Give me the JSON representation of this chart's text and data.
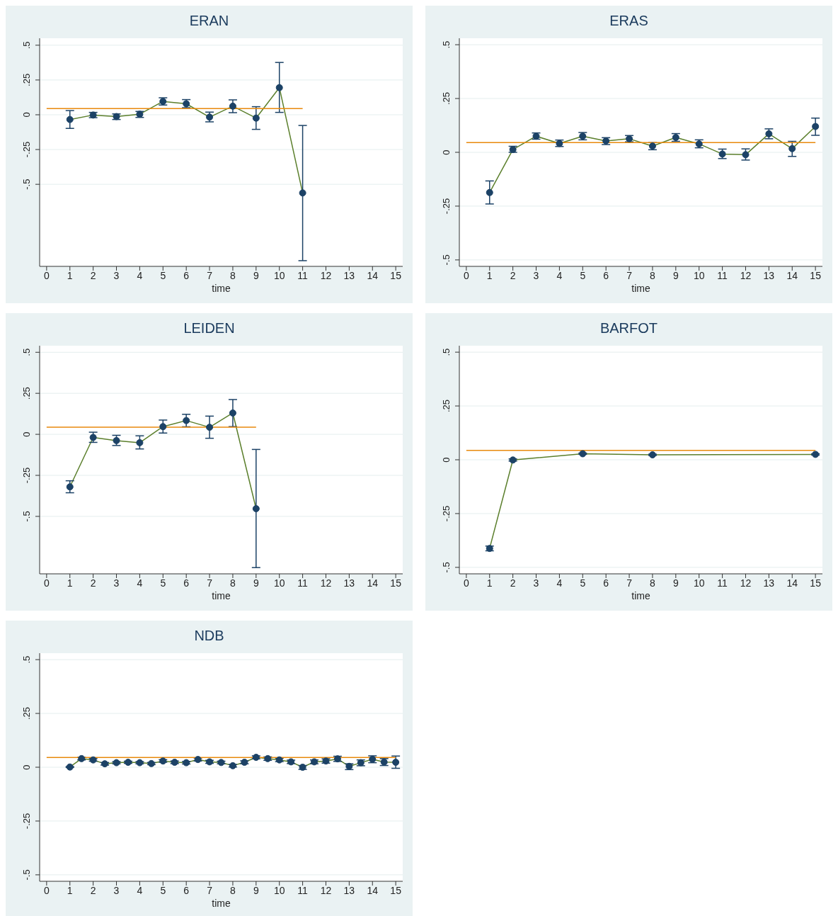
{
  "chart_data": [
    {
      "type": "line",
      "title": "ERAN",
      "xlabel": "time",
      "xlim": [
        -0.3,
        15.3
      ],
      "xticks": [
        0,
        1,
        2,
        3,
        4,
        5,
        6,
        7,
        8,
        9,
        10,
        11,
        12,
        13,
        14,
        15
      ],
      "ylim": [
        -1.09,
        0.55
      ],
      "yticks": [
        {
          "value": -0.5,
          "label": "-.5"
        },
        {
          "value": -0.25,
          "label": "-.25"
        },
        {
          "value": 0,
          "label": "0"
        },
        {
          "value": 0.25,
          "label": ".25"
        },
        {
          "value": 0.5,
          "label": ".5"
        }
      ],
      "grid": "y",
      "series": [
        {
          "type": "line",
          "color": "#5b7f2c",
          "marker": "none",
          "x": [
            1,
            2,
            3,
            4,
            5,
            6,
            7,
            8,
            9,
            10,
            11
          ],
          "values": [
            -0.034,
            -0.002,
            -0.013,
            0.004,
            0.096,
            0.079,
            -0.017,
            0.062,
            -0.024,
            0.195,
            -0.562
          ]
        },
        {
          "type": "scatter",
          "color": "#1c4266",
          "marker": "circle",
          "x": [
            1,
            2,
            3,
            4,
            5,
            6,
            7,
            8,
            9,
            10,
            11
          ],
          "values": [
            -0.034,
            -0.002,
            -0.013,
            0.004,
            0.096,
            0.079,
            -0.017,
            0.062,
            -0.024,
            0.195,
            -0.562
          ],
          "errors": [
            [
              -0.098,
              0.03
            ],
            [
              -0.021,
              0.017
            ],
            [
              -0.034,
              0.006
            ],
            [
              -0.019,
              0.024
            ],
            [
              0.07,
              0.122
            ],
            [
              0.051,
              0.109
            ],
            [
              -0.051,
              0.019
            ],
            [
              0.015,
              0.107
            ],
            [
              -0.105,
              0.058
            ],
            [
              0.017,
              0.376
            ],
            [
              -1.049,
              -0.077
            ]
          ]
        },
        {
          "type": "line",
          "color": "#e8890c",
          "marker": "none",
          "x": [
            0,
            11
          ],
          "values": [
            0.045,
            0.045
          ]
        }
      ]
    },
    {
      "type": "line",
      "title": "ERAS",
      "xlabel": "time",
      "xlim": [
        -0.3,
        15.3
      ],
      "xticks": [
        0,
        1,
        2,
        3,
        4,
        5,
        6,
        7,
        8,
        9,
        10,
        11,
        12,
        13,
        14,
        15
      ],
      "ylim": [
        -0.53,
        0.53
      ],
      "yticks": [
        {
          "value": -0.5,
          "label": "-.5"
        },
        {
          "value": -0.25,
          "label": "-.25"
        },
        {
          "value": 0,
          "label": "0"
        },
        {
          "value": 0.25,
          "label": ".25"
        },
        {
          "value": 0.5,
          "label": ".5"
        }
      ],
      "grid": "y",
      "series": [
        {
          "type": "line",
          "color": "#5b7f2c",
          "marker": "none",
          "x": [
            1,
            2,
            3,
            4,
            5,
            6,
            7,
            8,
            9,
            10,
            11,
            12,
            13,
            14,
            15
          ],
          "values": [
            -0.187,
            0.013,
            0.075,
            0.041,
            0.075,
            0.053,
            0.063,
            0.029,
            0.069,
            0.039,
            -0.008,
            -0.011,
            0.086,
            0.017,
            0.12
          ]
        },
        {
          "type": "scatter",
          "color": "#1c4266",
          "marker": "circle",
          "x": [
            1,
            2,
            3,
            4,
            5,
            6,
            7,
            8,
            9,
            10,
            11,
            12,
            13,
            14,
            15
          ],
          "values": [
            -0.187,
            0.013,
            0.075,
            0.041,
            0.075,
            0.053,
            0.063,
            0.029,
            0.069,
            0.039,
            -0.008,
            -0.011,
            0.086,
            0.017,
            0.12
          ],
          "errors": [
            [
              -0.24,
              -0.133
            ],
            [
              0,
              0.028
            ],
            [
              0.061,
              0.09
            ],
            [
              0.027,
              0.057
            ],
            [
              0.058,
              0.092
            ],
            [
              0.036,
              0.068
            ],
            [
              0.049,
              0.078
            ],
            [
              0.012,
              0.045
            ],
            [
              0.051,
              0.087
            ],
            [
              0.021,
              0.058
            ],
            [
              -0.029,
              0.015
            ],
            [
              -0.036,
              0.016
            ],
            [
              0.063,
              0.109
            ],
            [
              -0.019,
              0.051
            ],
            [
              0.079,
              0.159
            ]
          ]
        },
        {
          "type": "line",
          "color": "#e8890c",
          "marker": "none",
          "x": [
            0,
            15
          ],
          "values": [
            0.045,
            0.045
          ]
        }
      ]
    },
    {
      "type": "line",
      "title": "LEIDEN",
      "xlabel": "time",
      "xlim": [
        -0.3,
        15.3
      ],
      "xticks": [
        0,
        1,
        2,
        3,
        4,
        5,
        6,
        7,
        8,
        9,
        10,
        11,
        12,
        13,
        14,
        15
      ],
      "ylim": [
        -0.85,
        0.54
      ],
      "yticks": [
        {
          "value": -0.5,
          "label": "-.5"
        },
        {
          "value": -0.25,
          "label": "-.25"
        },
        {
          "value": 0,
          "label": "0"
        },
        {
          "value": 0.25,
          "label": ".25"
        },
        {
          "value": 0.5,
          "label": ".5"
        }
      ],
      "grid": "y",
      "series": [
        {
          "type": "line",
          "color": "#5b7f2c",
          "marker": "none",
          "x": [
            1,
            2,
            3,
            4,
            5,
            6,
            7,
            8,
            9
          ],
          "values": [
            -0.32,
            -0.019,
            -0.038,
            -0.051,
            0.047,
            0.084,
            0.043,
            0.13,
            -0.453
          ]
        },
        {
          "type": "scatter",
          "color": "#1c4266",
          "marker": "circle",
          "x": [
            1,
            2,
            3,
            4,
            5,
            6,
            7,
            8,
            9
          ],
          "values": [
            -0.32,
            -0.019,
            -0.038,
            -0.051,
            0.047,
            0.084,
            0.043,
            0.13,
            -0.453
          ],
          "errors": [
            [
              -0.356,
              -0.283
            ],
            [
              -0.049,
              0.013
            ],
            [
              -0.068,
              -0.006
            ],
            [
              -0.089,
              -0.009
            ],
            [
              0.008,
              0.087
            ],
            [
              0.046,
              0.122
            ],
            [
              -0.024,
              0.111
            ],
            [
              0.047,
              0.212
            ],
            [
              -0.812,
              -0.092
            ]
          ]
        },
        {
          "type": "line",
          "color": "#e8890c",
          "marker": "none",
          "x": [
            0,
            9
          ],
          "values": [
            0.044,
            0.044
          ]
        }
      ]
    },
    {
      "type": "line",
      "title": "BARFOT",
      "xlabel": "time",
      "xlim": [
        -0.3,
        15.3
      ],
      "xticks": [
        0,
        1,
        2,
        3,
        4,
        5,
        6,
        7,
        8,
        9,
        10,
        11,
        12,
        13,
        14,
        15
      ],
      "ylim": [
        -0.53,
        0.53
      ],
      "yticks": [
        {
          "value": -0.5,
          "label": "-.5"
        },
        {
          "value": -0.25,
          "label": "-.25"
        },
        {
          "value": 0,
          "label": "0"
        },
        {
          "value": 0.25,
          "label": ".25"
        },
        {
          "value": 0.5,
          "label": ".5"
        }
      ],
      "grid": "y",
      "series": [
        {
          "type": "line",
          "color": "#5b7f2c",
          "marker": "none",
          "x": [
            1,
            2,
            5,
            8,
            15
          ],
          "values": [
            -0.412,
            -0.001,
            0.028,
            0.023,
            0.025
          ]
        },
        {
          "type": "scatter",
          "color": "#1c4266",
          "marker": "circle",
          "x": [
            1,
            2,
            5,
            8,
            15
          ],
          "values": [
            -0.412,
            -0.001,
            0.028,
            0.023,
            0.025
          ],
          "errors": [
            [
              -0.423,
              -0.401
            ],
            [
              -0.006,
              0.004
            ],
            [
              0.025,
              0.031
            ],
            [
              0.02,
              0.026
            ],
            [
              0.022,
              0.028
            ]
          ]
        },
        {
          "type": "line",
          "color": "#e8890c",
          "marker": "none",
          "x": [
            0,
            15
          ],
          "values": [
            0.044,
            0.044
          ]
        }
      ]
    },
    {
      "type": "line",
      "title": "NDB",
      "xlabel": "time",
      "xlim": [
        -0.3,
        15.3
      ],
      "xticks": [
        0,
        1,
        2,
        3,
        4,
        5,
        6,
        7,
        8,
        9,
        10,
        11,
        12,
        13,
        14,
        15
      ],
      "ylim": [
        -0.53,
        0.53
      ],
      "yticks": [
        {
          "value": -0.5,
          "label": "-.5"
        },
        {
          "value": -0.25,
          "label": "-.25"
        },
        {
          "value": 0,
          "label": "0"
        },
        {
          "value": 0.25,
          "label": ".25"
        },
        {
          "value": 0.5,
          "label": ".5"
        }
      ],
      "grid": "y",
      "series": [
        {
          "type": "line",
          "color": "#5b7f2c",
          "marker": "none",
          "x": [
            1,
            1.5,
            2,
            2.5,
            3,
            3.5,
            4,
            4.5,
            5,
            5.5,
            6,
            6.5,
            7,
            7.5,
            8,
            8.5,
            9,
            9.5,
            10,
            10.5,
            11,
            11.5,
            12,
            12.5,
            13,
            13.5,
            14,
            14.5,
            15
          ],
          "values": [
            0.001,
            0.04,
            0.034,
            0.016,
            0.021,
            0.023,
            0.021,
            0.017,
            0.029,
            0.023,
            0.021,
            0.036,
            0.025,
            0.022,
            0.007,
            0.023,
            0.046,
            0.04,
            0.034,
            0.025,
            0,
            0.025,
            0.029,
            0.039,
            0.004,
            0.021,
            0.037,
            0.024,
            0.023
          ]
        },
        {
          "type": "scatter",
          "color": "#1c4266",
          "marker": "circle",
          "x": [
            1,
            1.5,
            2,
            2.5,
            3,
            3.5,
            4,
            4.5,
            5,
            5.5,
            6,
            6.5,
            7,
            7.5,
            8,
            8.5,
            9,
            9.5,
            10,
            10.5,
            11,
            11.5,
            12,
            12.5,
            13,
            13.5,
            14,
            14.5,
            15
          ],
          "values": [
            0.001,
            0.04,
            0.034,
            0.016,
            0.021,
            0.023,
            0.021,
            0.017,
            0.029,
            0.023,
            0.021,
            0.036,
            0.025,
            0.022,
            0.007,
            0.023,
            0.046,
            0.04,
            0.034,
            0.025,
            0,
            0.025,
            0.029,
            0.039,
            0.004,
            0.021,
            0.037,
            0.024,
            0.023
          ],
          "errors": [
            0.002,
            0.006,
            0.006,
            0.006,
            0.005,
            0.005,
            0.005,
            0.005,
            0.006,
            0.006,
            0.006,
            0.007,
            0.007,
            0.006,
            0.006,
            0.007,
            0.007,
            0.008,
            0.008,
            0.008,
            [
              -0.01,
              0.008
            ],
            0.009,
            0.01,
            [
              0.027,
              0.051
            ],
            [
              -0.011,
              0.016
            ],
            [
              0.007,
              0.034
            ],
            [
              0.021,
              0.053
            ],
            [
              0.008,
              0.04
            ],
            [
              -0.005,
              0.052
            ]
          ]
        },
        {
          "type": "line",
          "color": "#e8890c",
          "marker": "none",
          "x": [
            0,
            15
          ],
          "values": [
            0.045,
            0.045
          ]
        }
      ]
    }
  ]
}
